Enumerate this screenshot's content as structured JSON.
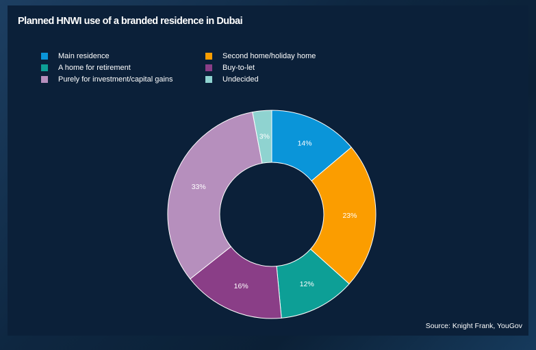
{
  "chart_data": {
    "type": "pie",
    "style": "donut",
    "title": "Planned HNWI use of a branded residence in Dubai",
    "source": "Source: Knight Frank, YouGov",
    "legend_position": "top",
    "slices": [
      {
        "label": "Main residence",
        "value": 14,
        "display": "14%",
        "color": "#0a95d9"
      },
      {
        "label": "Second home/holiday home",
        "value": 23,
        "display": "23%",
        "color": "#fb9d00"
      },
      {
        "label": "A home for retirement",
        "value": 12,
        "display": "12%",
        "color": "#0d9f96"
      },
      {
        "label": "Buy-to-let",
        "value": 16,
        "display": "16%",
        "color": "#8a3e87"
      },
      {
        "label": "Purely for investment/capital gains",
        "value": 33,
        "display": "33%",
        "color": "#b68fbd"
      },
      {
        "label": "Undecided",
        "value": 3,
        "display": "3%",
        "color": "#8fd3d0"
      }
    ]
  }
}
